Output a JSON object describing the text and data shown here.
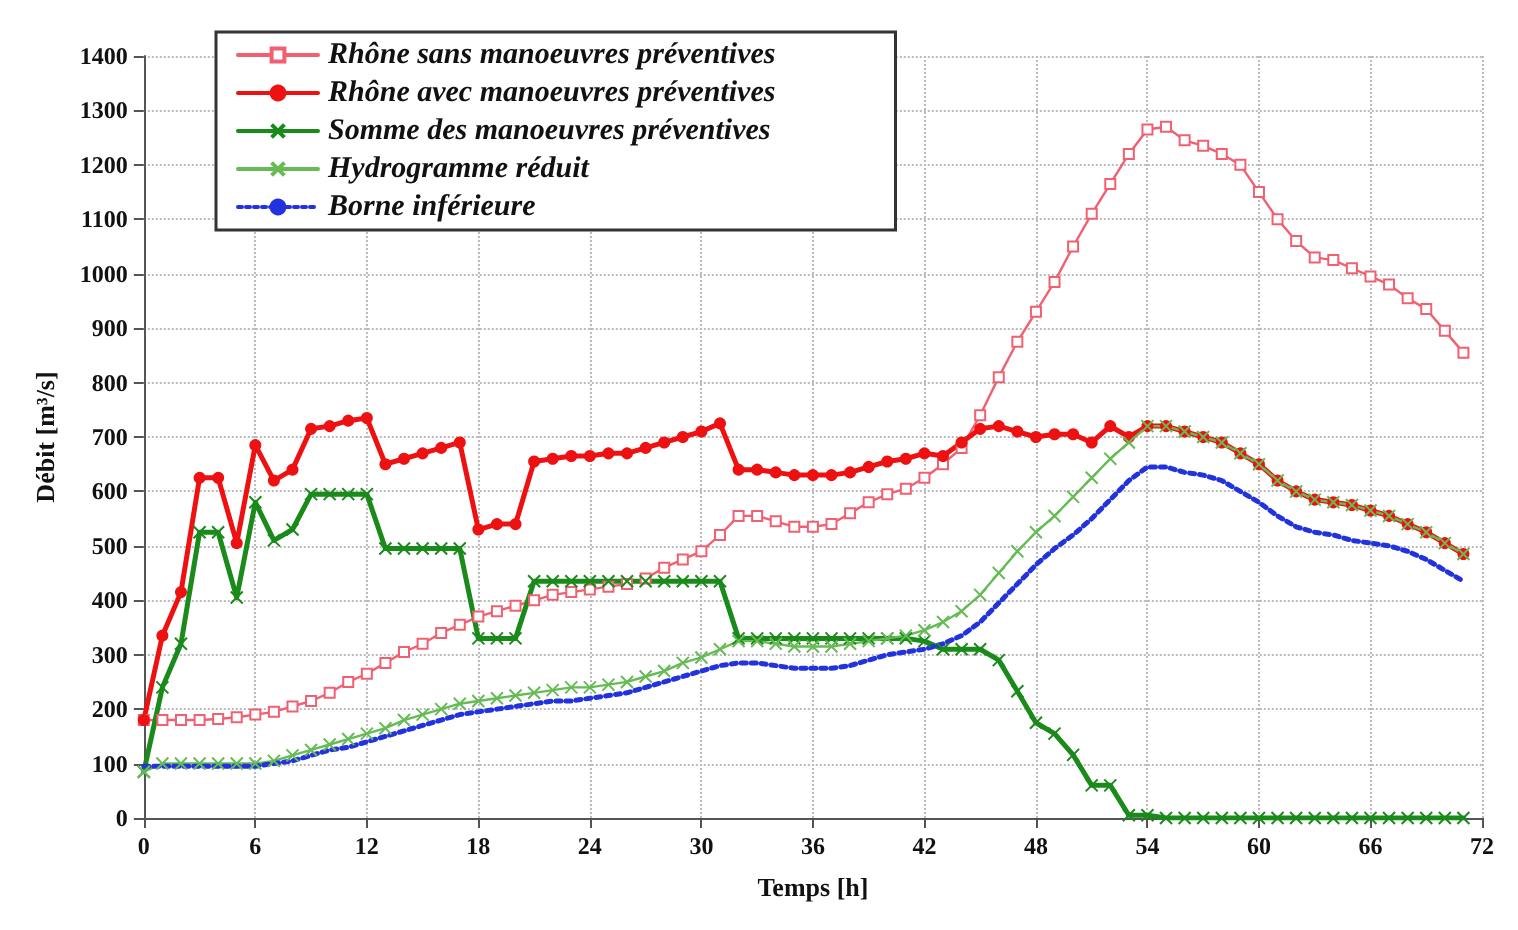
{
  "chart_data": {
    "type": "line",
    "xlabel": "Temps [h]",
    "ylabel": "Débit [m³/s]",
    "x": [
      0,
      1,
      2,
      3,
      4,
      5,
      6,
      7,
      8,
      9,
      10,
      11,
      12,
      13,
      14,
      15,
      16,
      17,
      18,
      19,
      20,
      21,
      22,
      23,
      24,
      25,
      26,
      27,
      28,
      29,
      30,
      31,
      32,
      33,
      34,
      35,
      36,
      37,
      38,
      39,
      40,
      41,
      42,
      43,
      44,
      45,
      46,
      47,
      48,
      49,
      50,
      51,
      52,
      53,
      54,
      55,
      56,
      57,
      58,
      59,
      60,
      61,
      62,
      63,
      64,
      65,
      66,
      67,
      68,
      69,
      70,
      71
    ],
    "xlim": [
      0,
      72
    ],
    "xticks": [
      0,
      6,
      12,
      18,
      24,
      30,
      36,
      42,
      48,
      54,
      60,
      66,
      72
    ],
    "ylim": [
      0,
      1400
    ],
    "yticks": [
      0,
      100,
      200,
      300,
      400,
      500,
      600,
      700,
      800,
      900,
      1000,
      1100,
      1200,
      1300,
      1400
    ],
    "grid": true,
    "legend": "top left",
    "series": [
      {
        "name": "Rhône sans manoeuvres préventives",
        "color": "#f06070",
        "marker": "square",
        "line_style": "solid",
        "values": [
          180,
          180,
          180,
          180,
          182,
          185,
          190,
          195,
          205,
          215,
          230,
          250,
          265,
          285,
          305,
          320,
          340,
          355,
          370,
          380,
          390,
          400,
          410,
          415,
          420,
          425,
          430,
          440,
          460,
          475,
          490,
          520,
          555,
          555,
          545,
          535,
          535,
          540,
          560,
          580,
          595,
          605,
          625,
          650,
          680,
          740,
          810,
          875,
          930,
          985,
          1050,
          1110,
          1165,
          1220,
          1265,
          1270,
          1245,
          1235,
          1220,
          1200,
          1150,
          1100,
          1060,
          1030,
          1025,
          1010,
          995,
          980,
          955,
          935,
          895,
          855
        ]
      },
      {
        "name": "Rhône avec manoeuvres préventives",
        "color": "#ee1111",
        "marker": "circle",
        "line_style": "solid",
        "values": [
          180,
          335,
          415,
          625,
          625,
          505,
          685,
          620,
          640,
          715,
          720,
          730,
          735,
          650,
          660,
          670,
          680,
          690,
          530,
          540,
          540,
          655,
          660,
          665,
          665,
          670,
          670,
          680,
          690,
          700,
          710,
          725,
          640,
          640,
          635,
          630,
          630,
          630,
          635,
          645,
          655,
          660,
          670,
          665,
          690,
          715,
          720,
          710,
          700,
          705,
          705,
          690,
          720,
          700,
          720,
          720,
          710,
          700,
          690,
          670,
          650,
          620,
          600,
          585,
          580,
          575,
          565,
          555,
          540,
          525,
          505,
          485
        ]
      },
      {
        "name": "Somme des manoeuvres préventives",
        "color": "#1a8a1a",
        "marker": "cross",
        "line_style": "solid",
        "values": [
          85,
          240,
          320,
          525,
          525,
          405,
          580,
          510,
          530,
          595,
          595,
          595,
          595,
          495,
          495,
          495,
          495,
          495,
          330,
          330,
          330,
          435,
          435,
          435,
          435,
          435,
          435,
          435,
          435,
          435,
          435,
          435,
          330,
          330,
          330,
          330,
          330,
          330,
          330,
          330,
          330,
          330,
          325,
          310,
          310,
          310,
          290,
          233,
          175,
          155,
          116,
          60,
          60,
          5,
          5,
          0,
          0,
          0,
          0,
          0,
          0,
          0,
          0,
          0,
          0,
          0,
          0,
          0,
          0,
          0,
          0,
          0
        ]
      },
      {
        "name": "Hydrogramme réduit",
        "color": "#66bb55",
        "marker": "cross",
        "line_style": "solid",
        "values": [
          85,
          100,
          100,
          100,
          100,
          100,
          100,
          105,
          115,
          125,
          135,
          145,
          155,
          165,
          180,
          190,
          200,
          210,
          215,
          220,
          225,
          230,
          235,
          240,
          240,
          245,
          250,
          260,
          270,
          285,
          295,
          310,
          325,
          325,
          320,
          315,
          315,
          315,
          320,
          325,
          330,
          335,
          345,
          360,
          380,
          410,
          450,
          490,
          525,
          555,
          590,
          625,
          660,
          690,
          720,
          720,
          710,
          700,
          690,
          670,
          650,
          620,
          600,
          585,
          580,
          575,
          565,
          555,
          540,
          525,
          505,
          485
        ]
      },
      {
        "name": "Borne inférieure",
        "color": "#2233dd",
        "marker": "none",
        "line_style": "dotted",
        "values": [
          95,
          95,
          95,
          95,
          95,
          95,
          95,
          100,
          105,
          115,
          125,
          130,
          140,
          150,
          160,
          170,
          180,
          190,
          195,
          200,
          205,
          210,
          215,
          215,
          220,
          225,
          230,
          240,
          250,
          260,
          270,
          280,
          285,
          285,
          280,
          275,
          275,
          275,
          280,
          290,
          300,
          305,
          310,
          320,
          335,
          360,
          395,
          430,
          465,
          495,
          520,
          550,
          585,
          620,
          645,
          645,
          635,
          630,
          620,
          600,
          580,
          555,
          535,
          525,
          520,
          510,
          505,
          500,
          490,
          475,
          455,
          435
        ]
      }
    ]
  }
}
